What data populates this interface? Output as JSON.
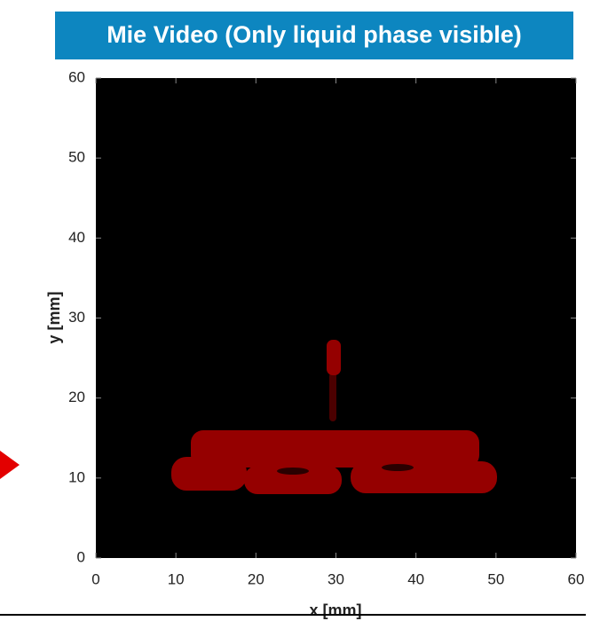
{
  "chart_data": {
    "type": "image",
    "title": "Mie Video (Only liquid phase visible)",
    "xlabel": "x [mm]",
    "ylabel": "y [mm]",
    "xlim": [
      0,
      60
    ],
    "ylim": [
      0,
      60
    ],
    "xticks": [
      0,
      10,
      20,
      30,
      40,
      50,
      60
    ],
    "yticks": [
      0,
      10,
      20,
      30,
      40,
      50,
      60
    ]
  }
}
